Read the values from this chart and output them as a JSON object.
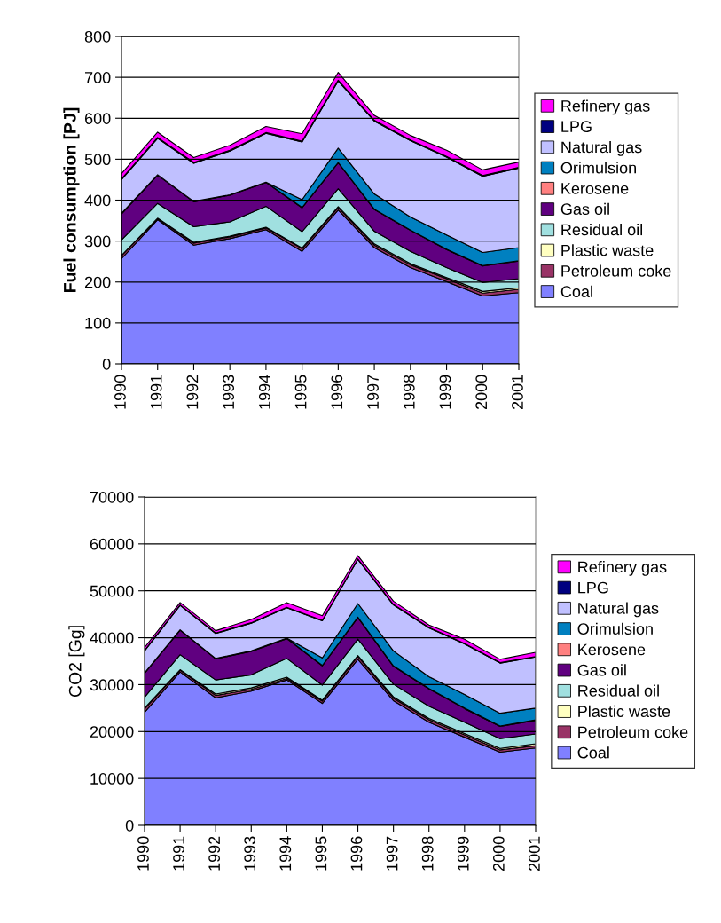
{
  "chart_data": [
    {
      "type": "area",
      "stacked": true,
      "ylabel": "Fuel consumption [PJ]",
      "categories": [
        "1990",
        "1991",
        "1992",
        "1993",
        "1994",
        "1995",
        "1996",
        "1997",
        "1998",
        "1999",
        "2000",
        "2001"
      ],
      "ylim": [
        0,
        800
      ],
      "yticks": [
        0,
        100,
        200,
        300,
        400,
        500,
        600,
        700,
        800
      ],
      "grid": "y",
      "legend": "right",
      "series": [
        {
          "name": "Coal",
          "color": "#8080ff",
          "values": [
            257,
            352,
            290,
            306,
            328,
            275,
            376,
            284,
            235,
            201,
            166,
            174
          ]
        },
        {
          "name": "Petroleum coke",
          "color": "#993366",
          "values": [
            7,
            3,
            5,
            4,
            4,
            6,
            6,
            6,
            7,
            7,
            7,
            8
          ]
        },
        {
          "name": "Plastic waste",
          "color": "#ffffc0",
          "values": [
            1,
            1,
            2,
            2,
            2,
            2,
            2,
            3,
            3,
            3,
            4,
            4
          ]
        },
        {
          "name": "Residual oil",
          "color": "#a0e0e0",
          "values": [
            38,
            36,
            38,
            35,
            51,
            40,
            44,
            31,
            30,
            24,
            22,
            22
          ]
        },
        {
          "name": "Gas oil",
          "color": "#600080",
          "values": [
            63,
            69,
            61,
            65,
            58,
            58,
            63,
            53,
            51,
            44,
            40,
            43
          ]
        },
        {
          "name": "Kerosene",
          "color": "#ff8080",
          "values": [
            2,
            1,
            1,
            1,
            1,
            1,
            1,
            1,
            1,
            1,
            1,
            1
          ]
        },
        {
          "name": "Orimulsion",
          "color": "#0080c0",
          "values": [
            0,
            0,
            0,
            0,
            0,
            19,
            35,
            37,
            32,
            35,
            32,
            32
          ]
        },
        {
          "name": "Natural gas",
          "color": "#c0c0ff",
          "values": [
            82,
            89,
            93,
            107,
            119,
            141,
            164,
            178,
            186,
            190,
            186,
            194
          ]
        },
        {
          "name": "LPG",
          "color": "#000080",
          "values": [
            2,
            2,
            2,
            2,
            2,
            2,
            2,
            2,
            2,
            2,
            2,
            2
          ]
        },
        {
          "name": "Refinery gas",
          "color": "#ff00ff",
          "values": [
            13,
            13,
            12,
            12,
            15,
            18,
            19,
            12,
            11,
            15,
            14,
            13
          ]
        }
      ]
    },
    {
      "type": "area",
      "stacked": true,
      "ylabel": "CO2 [Gg]",
      "categories": [
        "1990",
        "1991",
        "1992",
        "1993",
        "1994",
        "1995",
        "1996",
        "1997",
        "1998",
        "1999",
        "2000",
        "2001"
      ],
      "ylim": [
        0,
        70000
      ],
      "yticks": [
        0,
        10000,
        20000,
        30000,
        40000,
        50000,
        60000,
        70000
      ],
      "grid": "y",
      "legend": "right",
      "series": [
        {
          "name": "Coal",
          "color": "#8080ff",
          "values": [
            24100,
            32700,
            27200,
            28600,
            31000,
            26000,
            35400,
            26600,
            22000,
            18800,
            15600,
            16500
          ]
        },
        {
          "name": "Petroleum coke",
          "color": "#993366",
          "values": [
            700,
            400,
            500,
            400,
            300,
            500,
            600,
            500,
            500,
            500,
            500,
            500
          ]
        },
        {
          "name": "Plastic waste",
          "color": "#ffffc0",
          "values": [
            200,
            100,
            300,
            300,
            300,
            200,
            200,
            300,
            300,
            300,
            300,
            400
          ]
        },
        {
          "name": "Residual oil",
          "color": "#a0e0e0",
          "values": [
            2300,
            3200,
            3000,
            2800,
            4000,
            3200,
            3500,
            2700,
            2600,
            2400,
            2100,
            2100
          ]
        },
        {
          "name": "Gas oil",
          "color": "#600080",
          "values": [
            5100,
            5200,
            4500,
            5000,
            4200,
            4100,
            4600,
            3800,
            3700,
            2900,
            2600,
            2900
          ]
        },
        {
          "name": "Kerosene",
          "color": "#ff8080",
          "values": [
            100,
            100,
            100,
            100,
            100,
            100,
            100,
            100,
            100,
            100,
            100,
            100
          ]
        },
        {
          "name": "Orimulsion",
          "color": "#0080c0",
          "values": [
            0,
            0,
            0,
            0,
            0,
            1600,
            2900,
            3200,
            2500,
            2900,
            2700,
            2500
          ]
        },
        {
          "name": "Natural gas",
          "color": "#c0c0ff",
          "values": [
            4700,
            5200,
            5300,
            5900,
            6500,
            7900,
            9400,
            9800,
            10400,
            10800,
            10700,
            10900
          ]
        },
        {
          "name": "LPG",
          "color": "#000080",
          "values": [
            100,
            100,
            100,
            100,
            100,
            100,
            100,
            100,
            100,
            100,
            100,
            100
          ]
        },
        {
          "name": "Refinery gas",
          "color": "#ff00ff",
          "values": [
            600,
            500,
            500,
            700,
            1000,
            1000,
            700,
            700,
            500,
            900,
            700,
            900
          ]
        }
      ]
    }
  ]
}
